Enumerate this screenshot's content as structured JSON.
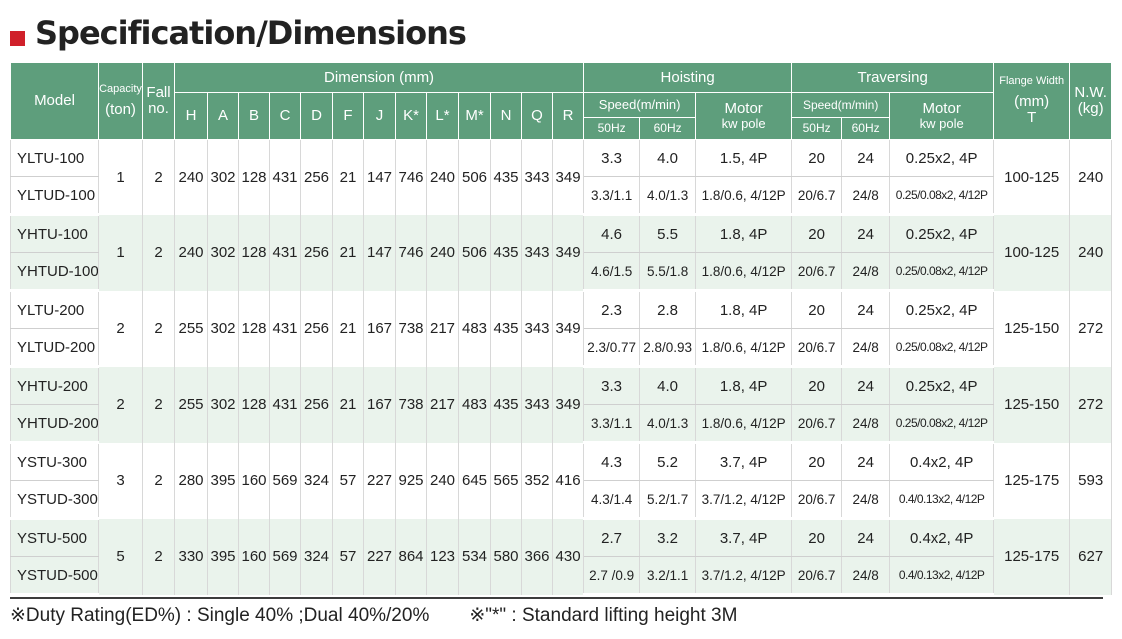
{
  "title": "Specification/Dimensions",
  "header": {
    "model": "Model",
    "capacity": "Capacity",
    "capacity_unit": "(ton)",
    "fall": "Fall",
    "fall_no": "no.",
    "dimension": "Dimension (mm)",
    "dims": [
      "H",
      "A",
      "B",
      "C",
      "D",
      "F",
      "J",
      "K*",
      "L*",
      "M*",
      "N",
      "Q",
      "R"
    ],
    "hoisting": "Hoisting",
    "traversing": "Traversing",
    "speed": "Speed(m/min)",
    "hz50": "50Hz",
    "hz60": "60Hz",
    "motor": "Motor",
    "kw_pole": "kw pole",
    "flange": "Flange Width",
    "flange_unit": "(mm)",
    "flange_t": "T",
    "nw": "N.W.",
    "nw_unit": "(kg)"
  },
  "groups": [
    {
      "models": [
        "YLTU-100",
        "YLTUD-100"
      ],
      "capacity": "1",
      "fall": "2",
      "dims": [
        "240",
        "302",
        "128",
        "431",
        "256",
        "21",
        "147",
        "746",
        "240",
        "506",
        "435",
        "343",
        "349"
      ],
      "hoist": [
        [
          "3.3",
          "4.0",
          "1.5, 4P"
        ],
        [
          "3.3/1.1",
          "4.0/1.3",
          "1.8/0.6, 4/12P"
        ]
      ],
      "trav": [
        [
          "20",
          "24",
          "0.25x2, 4P"
        ],
        [
          "20/6.7",
          "24/8",
          "0.25/0.08x2, 4/12P"
        ]
      ],
      "flange": "100-125",
      "nw": "240"
    },
    {
      "models": [
        "YHTU-100",
        "YHTUD-100"
      ],
      "capacity": "1",
      "fall": "2",
      "dims": [
        "240",
        "302",
        "128",
        "431",
        "256",
        "21",
        "147",
        "746",
        "240",
        "506",
        "435",
        "343",
        "349"
      ],
      "hoist": [
        [
          "4.6",
          "5.5",
          "1.8, 4P"
        ],
        [
          "4.6/1.5",
          "5.5/1.8",
          "1.8/0.6, 4/12P"
        ]
      ],
      "trav": [
        [
          "20",
          "24",
          "0.25x2, 4P"
        ],
        [
          "20/6.7",
          "24/8",
          "0.25/0.08x2, 4/12P"
        ]
      ],
      "flange": "100-125",
      "nw": "240"
    },
    {
      "models": [
        "YLTU-200",
        "YLTUD-200"
      ],
      "capacity": "2",
      "fall": "2",
      "dims": [
        "255",
        "302",
        "128",
        "431",
        "256",
        "21",
        "167",
        "738",
        "217",
        "483",
        "435",
        "343",
        "349"
      ],
      "hoist": [
        [
          "2.3",
          "2.8",
          "1.8, 4P"
        ],
        [
          "2.3/0.77",
          "2.8/0.93",
          "1.8/0.6, 4/12P"
        ]
      ],
      "trav": [
        [
          "20",
          "24",
          "0.25x2, 4P"
        ],
        [
          "20/6.7",
          "24/8",
          "0.25/0.08x2, 4/12P"
        ]
      ],
      "flange": "125-150",
      "nw": "272"
    },
    {
      "models": [
        "YHTU-200",
        "YHTUD-200"
      ],
      "capacity": "2",
      "fall": "2",
      "dims": [
        "255",
        "302",
        "128",
        "431",
        "256",
        "21",
        "167",
        "738",
        "217",
        "483",
        "435",
        "343",
        "349"
      ],
      "hoist": [
        [
          "3.3",
          "4.0",
          "1.8, 4P"
        ],
        [
          "3.3/1.1",
          "4.0/1.3",
          "1.8/0.6, 4/12P"
        ]
      ],
      "trav": [
        [
          "20",
          "24",
          "0.25x2, 4P"
        ],
        [
          "20/6.7",
          "24/8",
          "0.25/0.08x2, 4/12P"
        ]
      ],
      "flange": "125-150",
      "nw": "272"
    },
    {
      "models": [
        "YSTU-300",
        "YSTUD-300"
      ],
      "capacity": "3",
      "fall": "2",
      "dims": [
        "280",
        "395",
        "160",
        "569",
        "324",
        "57",
        "227",
        "925",
        "240",
        "645",
        "565",
        "352",
        "416"
      ],
      "hoist": [
        [
          "4.3",
          "5.2",
          "3.7, 4P"
        ],
        [
          "4.3/1.4",
          "5.2/1.7",
          "3.7/1.2, 4/12P"
        ]
      ],
      "trav": [
        [
          "20",
          "24",
          "0.4x2, 4P"
        ],
        [
          "20/6.7",
          "24/8",
          "0.4/0.13x2, 4/12P"
        ]
      ],
      "flange": "125-175",
      "nw": "593"
    },
    {
      "models": [
        "YSTU-500",
        "YSTUD-500"
      ],
      "capacity": "5",
      "fall": "2",
      "dims": [
        "330",
        "395",
        "160",
        "569",
        "324",
        "57",
        "227",
        "864",
        "123",
        "534",
        "580",
        "366",
        "430"
      ],
      "hoist": [
        [
          "2.7",
          "3.2",
          "3.7, 4P"
        ],
        [
          "2.7 /0.9",
          "3.2/1.1",
          "3.7/1.2, 4/12P"
        ]
      ],
      "trav": [
        [
          "20",
          "24",
          "0.4x2, 4P"
        ],
        [
          "20/6.7",
          "24/8",
          "0.4/0.13x2, 4/12P"
        ]
      ],
      "flange": "125-175",
      "nw": "627"
    }
  ],
  "footer": {
    "duty": "※Duty Rating(ED%) : Single 40% ;Dual 40%/20%",
    "note": "※\"*\" : Standard lifting height 3M"
  }
}
